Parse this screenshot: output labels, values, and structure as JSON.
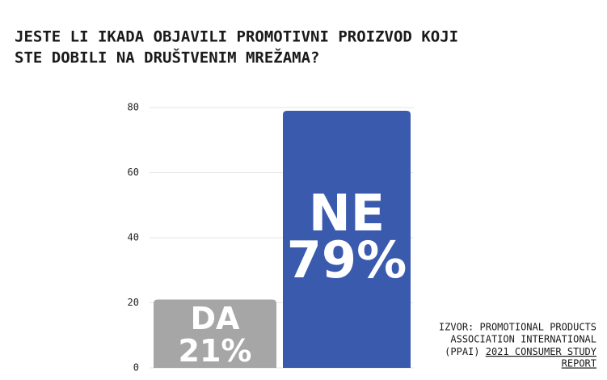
{
  "chart_data": {
    "type": "bar",
    "title": [
      "JESTE LI IKADA OBJAVILI PROMOTIVNI PROIZVOD KOJI",
      "STE DOBILI NA DRUŠTVENIM MREŽAMA?"
    ],
    "categories": [
      "DA",
      "NE"
    ],
    "values": [
      21,
      79
    ],
    "value_labels": [
      "21%",
      "79%"
    ],
    "colors": [
      "#a6a6a6",
      "#3a5aad"
    ],
    "ylim": [
      0,
      80
    ],
    "yticks": [
      0,
      20,
      40,
      60,
      80
    ],
    "grid": true,
    "source_lines": [
      "IZVOR:  PROMOTIONAL PRODUCTS",
      "ASSOCIATION INTERNATIONAL",
      "(PPAI) "
    ],
    "source_link": [
      "2021 CONSUMER STUDY",
      "REPORT"
    ]
  }
}
